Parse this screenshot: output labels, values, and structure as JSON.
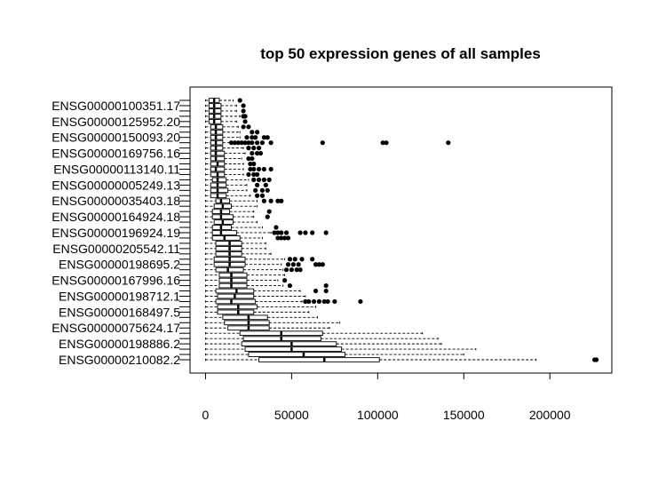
{
  "chart_data": {
    "type": "boxplot",
    "orientation": "horizontal",
    "title": "top 50 expression genes of all samples",
    "xlabel": "",
    "ylabel": "",
    "xlim": [
      -9000,
      236000
    ],
    "x_ticks": [
      0,
      50000,
      100000,
      150000,
      200000
    ],
    "x_tick_labels": [
      "0",
      "50000",
      "100000",
      "150000",
      "200000"
    ],
    "category_count": 50,
    "y_labels": [
      {
        "pos": 1,
        "label": "ENSG00000210082.2"
      },
      {
        "pos": 4,
        "label": "ENSG00000198886.2"
      },
      {
        "pos": 7,
        "label": "ENSG00000075624.17"
      },
      {
        "pos": 10,
        "label": "ENSG00000168497.5"
      },
      {
        "pos": 13,
        "label": "ENSG00000198712.1"
      },
      {
        "pos": 16,
        "label": "ENSG00000167996.16"
      },
      {
        "pos": 19,
        "label": "ENSG00000198695.2"
      },
      {
        "pos": 22,
        "label": "ENSG00000205542.11"
      },
      {
        "pos": 25,
        "label": "ENSG00000196924.19"
      },
      {
        "pos": 28,
        "label": "ENSG00000164924.18"
      },
      {
        "pos": 31,
        "label": "ENSG00000035403.18"
      },
      {
        "pos": 34,
        "label": "ENSG00000005249.13"
      },
      {
        "pos": 37,
        "label": "ENSG00000113140.11"
      },
      {
        "pos": 40,
        "label": "ENSG00000169756.16"
      },
      {
        "pos": 43,
        "label": "ENSG00000150093.20"
      },
      {
        "pos": 46,
        "label": "ENSG00000125952.20"
      },
      {
        "pos": 49,
        "label": "ENSG00000100351.17"
      }
    ],
    "boxes": [
      {
        "pos": 1,
        "whisker_low": 0,
        "q1": 31000,
        "median": 69000,
        "q3": 101000,
        "whisker_high": 192000,
        "outliers": [
          226000,
          227000
        ]
      },
      {
        "pos": 2,
        "whisker_low": 0,
        "q1": 25000,
        "median": 57000,
        "q3": 81000,
        "whisker_high": 150000,
        "outliers": []
      },
      {
        "pos": 3,
        "whisker_low": 0,
        "q1": 23000,
        "median": 50000,
        "q3": 79000,
        "whisker_high": 157000,
        "outliers": []
      },
      {
        "pos": 4,
        "whisker_low": 0,
        "q1": 21000,
        "median": 50000,
        "q3": 76000,
        "whisker_high": 137000,
        "outliers": []
      },
      {
        "pos": 5,
        "whisker_low": 0,
        "q1": 22000,
        "median": 44000,
        "q3": 67000,
        "whisker_high": 135000,
        "outliers": []
      },
      {
        "pos": 6,
        "whisker_low": 0,
        "q1": 20000,
        "median": 44000,
        "q3": 68000,
        "whisker_high": 126000,
        "outliers": []
      },
      {
        "pos": 7,
        "whisker_low": 0,
        "q1": 13000,
        "median": 25000,
        "q3": 37000,
        "whisker_high": 72000,
        "outliers": []
      },
      {
        "pos": 8,
        "whisker_low": 0,
        "q1": 11000,
        "median": 25000,
        "q3": 37000,
        "whisker_high": 78000,
        "outliers": []
      },
      {
        "pos": 9,
        "whisker_low": 0,
        "q1": 10000,
        "median": 25000,
        "q3": 36000,
        "whisker_high": 65000,
        "outliers": []
      },
      {
        "pos": 10,
        "whisker_low": 0,
        "q1": 7000,
        "median": 19000,
        "q3": 28000,
        "whisker_high": 60000,
        "outliers": []
      },
      {
        "pos": 11,
        "whisker_low": 0,
        "q1": 7000,
        "median": 19000,
        "q3": 30000,
        "whisker_high": 64000,
        "outliers": []
      },
      {
        "pos": 12,
        "whisker_low": 0,
        "q1": 6000,
        "median": 15000,
        "q3": 29000,
        "whisker_high": 56000,
        "outliers": [
          58000,
          60000,
          63000,
          66000,
          69000,
          71000,
          75000,
          90000
        ]
      },
      {
        "pos": 13,
        "whisker_low": 0,
        "q1": 7000,
        "median": 17000,
        "q3": 28000,
        "whisker_high": 58000,
        "outliers": []
      },
      {
        "pos": 14,
        "whisker_low": 0,
        "q1": 6000,
        "median": 18000,
        "q3": 28000,
        "whisker_high": 55000,
        "outliers": [
          64000,
          70000
        ]
      },
      {
        "pos": 15,
        "whisker_low": 0,
        "q1": 8000,
        "median": 15000,
        "q3": 24000,
        "whisker_high": 45000,
        "outliers": [
          49000,
          70000
        ]
      },
      {
        "pos": 16,
        "whisker_low": 0,
        "q1": 8000,
        "median": 15000,
        "q3": 24000,
        "whisker_high": 42000,
        "outliers": [
          46000
        ]
      },
      {
        "pos": 17,
        "whisker_low": 0,
        "q1": 8000,
        "median": 15000,
        "q3": 24000,
        "whisker_high": 46000,
        "outliers": []
      },
      {
        "pos": 18,
        "whisker_low": 0,
        "q1": 6000,
        "median": 13000,
        "q3": 22000,
        "whisker_high": 45000,
        "outliers": [
          47000,
          50000,
          53000,
          55000
        ]
      },
      {
        "pos": 19,
        "whisker_low": 0,
        "q1": 5000,
        "median": 14000,
        "q3": 23000,
        "whisker_high": 44000,
        "outliers": [
          48000,
          51000,
          54000,
          64000,
          66000,
          68000
        ]
      },
      {
        "pos": 20,
        "whisker_low": 0,
        "q1": 5000,
        "median": 14000,
        "q3": 23000,
        "whisker_high": 46000,
        "outliers": [
          49000,
          52000,
          56000,
          62000
        ]
      },
      {
        "pos": 21,
        "whisker_low": 0,
        "q1": 6000,
        "median": 14000,
        "q3": 21000,
        "whisker_high": 38000,
        "outliers": []
      },
      {
        "pos": 22,
        "whisker_low": 0,
        "q1": 6000,
        "median": 14000,
        "q3": 21000,
        "whisker_high": 35000,
        "outliers": []
      },
      {
        "pos": 23,
        "whisker_low": 0,
        "q1": 6000,
        "median": 14000,
        "q3": 21000,
        "whisker_high": 35000,
        "outliers": []
      },
      {
        "pos": 24,
        "whisker_low": 0,
        "q1": 4000,
        "median": 11000,
        "q3": 20000,
        "whisker_high": 33000,
        "outliers": [
          42000,
          44000,
          46000,
          48000
        ]
      },
      {
        "pos": 25,
        "whisker_low": 0,
        "q1": 4000,
        "median": 9000,
        "q3": 18000,
        "whisker_high": 38000,
        "outliers": [
          40000,
          42000,
          44000,
          47000,
          55000,
          58000,
          62000,
          70000
        ]
      },
      {
        "pos": 26,
        "whisker_low": 0,
        "q1": 4000,
        "median": 9000,
        "q3": 15000,
        "whisker_high": 33000,
        "outliers": [
          41000
        ]
      },
      {
        "pos": 27,
        "whisker_low": 0,
        "q1": 5000,
        "median": 10000,
        "q3": 16000,
        "whisker_high": 30000,
        "outliers": []
      },
      {
        "pos": 28,
        "whisker_low": 0,
        "q1": 4000,
        "median": 9000,
        "q3": 16000,
        "whisker_high": 28000,
        "outliers": [
          36000
        ]
      },
      {
        "pos": 29,
        "whisker_low": 0,
        "q1": 4000,
        "median": 9000,
        "q3": 14000,
        "whisker_high": 28000,
        "outliers": [
          37000
        ]
      },
      {
        "pos": 30,
        "whisker_low": 0,
        "q1": 5000,
        "median": 10000,
        "q3": 15000,
        "whisker_high": 30000,
        "outliers": []
      },
      {
        "pos": 31,
        "whisker_low": 0,
        "q1": 6000,
        "median": 9000,
        "q3": 14000,
        "whisker_high": 30000,
        "outliers": [
          34000,
          38000,
          42000,
          44000
        ]
      },
      {
        "pos": 32,
        "whisker_low": 0,
        "q1": 3000,
        "median": 7000,
        "q3": 12000,
        "whisker_high": 26000,
        "outliers": [
          30000,
          33000
        ]
      },
      {
        "pos": 33,
        "whisker_low": 0,
        "q1": 3000,
        "median": 7000,
        "q3": 13000,
        "whisker_high": 24000,
        "outliers": [
          29000,
          33000,
          36000
        ]
      },
      {
        "pos": 34,
        "whisker_low": 0,
        "q1": 3000,
        "median": 7000,
        "q3": 12000,
        "whisker_high": 24000,
        "outliers": [
          30000,
          35000
        ]
      },
      {
        "pos": 35,
        "whisker_low": 0,
        "q1": 4000,
        "median": 7000,
        "q3": 12000,
        "whisker_high": 25000,
        "outliers": [
          28000,
          31000,
          34000,
          37000
        ]
      },
      {
        "pos": 36,
        "whisker_low": 0,
        "q1": 3000,
        "median": 7000,
        "q3": 11000,
        "whisker_high": 22000,
        "outliers": [
          25000,
          28000,
          30000
        ]
      },
      {
        "pos": 37,
        "whisker_low": 0,
        "q1": 3000,
        "median": 6000,
        "q3": 11000,
        "whisker_high": 22000,
        "outliers": [
          26000,
          28000,
          31000,
          34000,
          38000
        ]
      },
      {
        "pos": 38,
        "whisker_low": 0,
        "q1": 3000,
        "median": 7000,
        "q3": 11000,
        "whisker_high": 22000,
        "outliers": [
          26000,
          28000
        ]
      },
      {
        "pos": 39,
        "whisker_low": 0,
        "q1": 3000,
        "median": 6000,
        "q3": 11000,
        "whisker_high": 21000,
        "outliers": [
          25000,
          27000
        ]
      },
      {
        "pos": 40,
        "whisker_low": 0,
        "q1": 3000,
        "median": 6000,
        "q3": 11000,
        "whisker_high": 23000,
        "outliers": [
          27000,
          30000,
          32000
        ]
      },
      {
        "pos": 41,
        "whisker_low": 0,
        "q1": 3000,
        "median": 6000,
        "q3": 10000,
        "whisker_high": 22000,
        "outliers": [
          25000,
          28000,
          31000
        ]
      },
      {
        "pos": 42,
        "whisker_low": 0,
        "q1": 3000,
        "median": 6000,
        "q3": 10000,
        "whisker_high": 14000,
        "outliers": [
          15000,
          17000,
          19000,
          21000,
          23000,
          25000,
          27000,
          30000,
          33000,
          38000,
          68000,
          103000,
          105000,
          141000
        ]
      },
      {
        "pos": 43,
        "whisker_low": 0,
        "q1": 3000,
        "median": 6000,
        "q3": 10000,
        "whisker_high": 20000,
        "outliers": [
          24000,
          27000,
          29000,
          34000,
          36000
        ]
      },
      {
        "pos": 44,
        "whisker_low": 0,
        "q1": 3000,
        "median": 6000,
        "q3": 10000,
        "whisker_high": 20000,
        "outliers": [
          27000,
          30000
        ]
      },
      {
        "pos": 45,
        "whisker_low": 0,
        "q1": 3000,
        "median": 6000,
        "q3": 10000,
        "whisker_high": 19000,
        "outliers": [
          22000,
          25000
        ]
      },
      {
        "pos": 46,
        "whisker_low": 0,
        "q1": 2000,
        "median": 5000,
        "q3": 9000,
        "whisker_high": 18000,
        "outliers": [
          23000
        ]
      },
      {
        "pos": 47,
        "whisker_low": 0,
        "q1": 2000,
        "median": 5000,
        "q3": 9000,
        "whisker_high": 20000,
        "outliers": [
          22000,
          23000
        ]
      },
      {
        "pos": 48,
        "whisker_low": 0,
        "q1": 2000,
        "median": 5000,
        "q3": 9000,
        "whisker_high": 18000,
        "outliers": [
          22000
        ]
      },
      {
        "pos": 49,
        "whisker_low": 0,
        "q1": 2000,
        "median": 5000,
        "q3": 9000,
        "whisker_high": 18000,
        "outliers": [
          22000
        ]
      },
      {
        "pos": 50,
        "whisker_low": 0,
        "q1": 2000,
        "median": 5000,
        "q3": 8000,
        "whisker_high": 16000,
        "outliers": [
          20000
        ]
      }
    ]
  }
}
